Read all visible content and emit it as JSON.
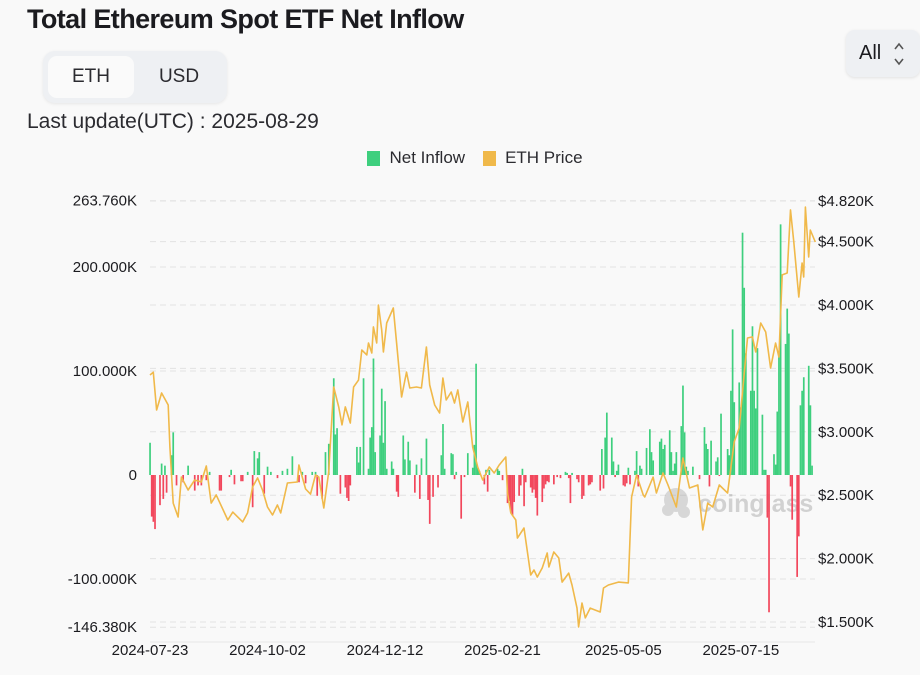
{
  "header": {
    "title": "Total Ethereum Spot ETF Net Inflow",
    "unit_toggle": {
      "options": [
        "ETH",
        "USD"
      ],
      "selected": "ETH"
    },
    "range_select": {
      "value": "All"
    },
    "last_update": "Last update(UTC) : 2025-08-29"
  },
  "colors": {
    "inflow_positive": "#3ecf7e",
    "inflow_negative": "#f2475c",
    "price": "#f0b94a",
    "grid": "#e2e2e2"
  },
  "watermark": "coinglass",
  "chart_data": {
    "type": "bar",
    "legend": [
      "Net Inflow",
      "ETH Price"
    ],
    "legend_position": "top",
    "grid": true,
    "x_ticks": [
      "2024-07-23",
      "2024-10-02",
      "2024-12-12",
      "2025-02-21",
      "2025-05-05",
      "2025-07-15"
    ],
    "y_left": {
      "ticks": [
        263.76,
        200,
        100,
        0,
        -100,
        -146.38
      ],
      "tick_labels": [
        "263.760K",
        "200.000K",
        "100.000K",
        "0",
        "-100.000K",
        "-146.380K"
      ],
      "range": [
        -146.38,
        263.76
      ],
      "unit": "K ETH"
    },
    "y_right": {
      "ticks": [
        4820,
        4500,
        4000,
        3500,
        3000,
        2500,
        2000,
        1500
      ],
      "tick_labels": [
        "$4.820K",
        "$4.500K",
        "$4.000K",
        "$3.500K",
        "$3.000K",
        "$2.500K",
        "$2.000K",
        "$1.500K"
      ],
      "range": [
        1500,
        4820
      ]
    },
    "series": [
      {
        "name": "Net Inflow",
        "type": "bar",
        "axis": "left",
        "x": [
          "2024-07-23",
          "2024-07-24",
          "2024-07-25",
          "2024-07-26",
          "2024-07-29",
          "2024-07-30",
          "2024-07-31",
          "2024-08-01",
          "2024-08-02",
          "2024-08-05",
          "2024-08-06",
          "2024-08-08",
          "2024-08-12",
          "2024-08-15",
          "2024-08-19",
          "2024-08-21",
          "2024-08-23",
          "2024-08-26",
          "2024-08-28",
          "2024-09-03",
          "2024-09-04",
          "2024-09-09",
          "2024-09-10",
          "2024-09-12",
          "2024-09-16",
          "2024-09-17",
          "2024-09-20",
          "2024-09-23",
          "2024-09-24",
          "2024-09-26",
          "2024-09-27",
          "2024-09-30",
          "2024-10-02",
          "2024-10-04",
          "2024-10-08",
          "2024-10-11",
          "2024-10-14",
          "2024-10-17",
          "2024-10-21",
          "2024-10-23",
          "2024-10-25",
          "2024-10-29",
          "2024-10-31",
          "2024-11-01",
          "2024-11-04",
          "2024-11-06",
          "2024-11-08",
          "2024-11-11",
          "2024-11-12",
          "2024-11-13",
          "2024-11-15",
          "2024-11-18",
          "2024-11-19",
          "2024-11-20",
          "2024-11-21",
          "2024-11-25",
          "2024-11-26",
          "2024-11-27",
          "2024-11-29",
          "2024-12-02",
          "2024-12-03",
          "2024-12-04",
          "2024-12-05",
          "2024-12-06",
          "2024-12-09",
          "2024-12-10",
          "2024-12-11",
          "2024-12-12",
          "2024-12-13",
          "2024-12-16",
          "2024-12-17",
          "2024-12-19",
          "2024-12-20",
          "2024-12-23",
          "2024-12-24",
          "2024-12-26",
          "2024-12-27",
          "2024-12-30",
          "2024-12-31",
          "2025-01-02",
          "2025-01-03",
          "2025-01-06",
          "2025-01-07",
          "2025-01-08",
          "2025-01-10",
          "2025-01-13",
          "2025-01-15",
          "2025-01-16",
          "2025-01-17",
          "2025-01-21",
          "2025-01-22",
          "2025-01-23",
          "2025-01-24",
          "2025-01-27",
          "2025-01-29",
          "2025-01-31",
          "2025-02-03",
          "2025-02-04",
          "2025-02-05",
          "2025-02-06",
          "2025-02-07",
          "2025-02-10",
          "2025-02-11",
          "2025-02-12",
          "2025-02-13",
          "2025-02-18",
          "2025-02-19",
          "2025-02-21",
          "2025-02-24",
          "2025-02-25",
          "2025-02-26",
          "2025-02-27",
          "2025-02-28",
          "2025-03-03",
          "2025-03-04",
          "2025-03-05",
          "2025-03-06",
          "2025-03-07",
          "2025-03-10",
          "2025-03-11",
          "2025-03-12",
          "2025-03-13",
          "2025-03-14",
          "2025-03-17",
          "2025-03-18",
          "2025-03-19",
          "2025-03-20",
          "2025-03-21",
          "2025-03-24",
          "2025-03-26",
          "2025-03-28",
          "2025-03-31",
          "2025-04-01",
          "2025-04-02",
          "2025-04-03",
          "2025-04-04",
          "2025-04-07",
          "2025-04-08",
          "2025-04-10",
          "2025-04-11",
          "2025-04-14",
          "2025-04-15",
          "2025-04-16",
          "2025-04-21",
          "2025-04-22",
          "2025-04-23",
          "2025-04-24",
          "2025-04-25",
          "2025-04-28",
          "2025-04-29",
          "2025-04-30",
          "2025-05-01",
          "2025-05-02",
          "2025-05-05",
          "2025-05-06",
          "2025-05-07",
          "2025-05-08",
          "2025-05-09",
          "2025-05-12",
          "2025-05-13",
          "2025-05-14",
          "2025-05-15",
          "2025-05-16",
          "2025-05-19",
          "2025-05-21",
          "2025-05-22",
          "2025-05-23",
          "2025-05-27",
          "2025-05-28",
          "2025-05-29",
          "2025-05-30",
          "2025-06-02",
          "2025-06-03",
          "2025-06-04",
          "2025-06-05",
          "2025-06-06",
          "2025-06-09",
          "2025-06-10",
          "2025-06-11",
          "2025-06-12",
          "2025-06-13",
          "2025-06-16",
          "2025-06-20",
          "2025-06-23",
          "2025-06-24",
          "2025-06-25",
          "2025-06-26",
          "2025-06-27",
          "2025-06-30",
          "2025-07-01",
          "2025-07-02",
          "2025-07-03",
          "2025-07-07",
          "2025-07-08",
          "2025-07-09",
          "2025-07-10",
          "2025-07-11",
          "2025-07-14",
          "2025-07-15",
          "2025-07-16",
          "2025-07-17",
          "2025-07-18",
          "2025-07-21",
          "2025-07-22",
          "2025-07-23",
          "2025-07-24",
          "2025-07-25",
          "2025-07-28",
          "2025-07-29",
          "2025-07-30",
          "2025-07-31",
          "2025-08-01",
          "2025-08-04",
          "2025-08-05",
          "2025-08-06",
          "2025-08-07",
          "2025-08-08",
          "2025-08-11",
          "2025-08-12",
          "2025-08-13",
          "2025-08-14",
          "2025-08-15",
          "2025-08-18",
          "2025-08-19",
          "2025-08-20",
          "2025-08-21",
          "2025-08-22",
          "2025-08-25",
          "2025-08-26",
          "2025-08-27"
        ],
        "values": [
          31,
          -40,
          -45,
          -52,
          -29,
          11,
          -23,
          9,
          -17,
          19,
          41,
          -10,
          -7,
          9,
          -15,
          -10,
          -10,
          -5,
          3,
          -15,
          -15,
          -2,
          5,
          -9,
          -6,
          -6,
          3,
          -31,
          23,
          16,
          22,
          -18,
          8,
          3,
          -3,
          4,
          6,
          18,
          -7,
          3,
          -8,
          3,
          3,
          -20,
          -23,
          22,
          30,
          93,
          39,
          45,
          -18,
          -12,
          -22,
          -25,
          -10,
          27,
          12,
          27,
          93,
          6,
          36,
          46,
          112,
          22,
          38,
          83,
          31,
          71,
          6,
          13,
          6,
          -16,
          -21,
          38,
          15,
          32,
          14,
          -17,
          10,
          -23,
          16,
          35,
          -24,
          -47,
          -21,
          -12,
          19,
          49,
          6,
          21,
          20,
          -4,
          3,
          -42,
          -2,
          21,
          7,
          29,
          107,
          7,
          4,
          -9,
          5,
          -16,
          5,
          6,
          4,
          -5,
          -27,
          -25,
          -36,
          -39,
          -26,
          -20,
          -10,
          6,
          -30,
          -7,
          -12,
          -17,
          -14,
          -22,
          -39,
          -26,
          -13,
          -9,
          -6,
          -7,
          -9,
          -2,
          -3,
          3,
          2,
          -3,
          -27,
          2,
          -4,
          -7,
          -23,
          -20,
          -10,
          -9,
          -7,
          -15,
          25,
          -13,
          36,
          60,
          36,
          13,
          -2,
          4,
          10,
          -10,
          -11,
          -8,
          7,
          -9,
          4,
          23,
          -11,
          9,
          6,
          26,
          44,
          22,
          14,
          32,
          35,
          25,
          29,
          43,
          22,
          4,
          11,
          22,
          47,
          86,
          41,
          8,
          4,
          8,
          -4,
          46,
          30,
          25,
          -11,
          33,
          13,
          17,
          -1,
          59,
          25,
          19,
          81,
          140,
          70,
          89,
          65,
          233,
          180,
          117,
          81,
          143,
          81,
          64,
          122,
          58,
          5,
          5,
          -41,
          -132,
          20,
          10,
          61,
          119,
          241,
          126,
          160,
          136,
          -11,
          -43,
          -98,
          -59,
          67,
          81,
          94,
          105,
          67,
          9
        ]
      },
      {
        "name": "ETH Price",
        "type": "line",
        "axis": "right",
        "x": [
          "2024-07-23",
          "2024-07-25",
          "2024-07-27",
          "2024-07-30",
          "2024-08-03",
          "2024-08-04",
          "2024-08-06",
          "2024-08-09",
          "2024-08-11",
          "2024-08-15",
          "2024-08-19",
          "2024-08-23",
          "2024-08-26",
          "2024-08-29",
          "2024-09-01",
          "2024-09-08",
          "2024-09-11",
          "2024-09-17",
          "2024-09-20",
          "2024-09-23",
          "2024-09-26",
          "2024-09-29",
          "2024-10-02",
          "2024-10-05",
          "2024-10-08",
          "2024-10-10",
          "2024-10-14",
          "2024-10-20",
          "2024-10-21",
          "2024-10-25",
          "2024-10-28",
          "2024-10-31",
          "2024-11-02",
          "2024-11-05",
          "2024-11-08",
          "2024-11-11",
          "2024-11-14",
          "2024-11-16",
          "2024-11-18",
          "2024-11-21",
          "2024-11-23",
          "2024-11-26",
          "2024-11-28",
          "2024-12-01",
          "2024-12-02",
          "2024-12-04",
          "2024-12-05",
          "2024-12-07",
          "2024-12-08",
          "2024-12-10",
          "2024-12-11",
          "2024-12-13",
          "2024-12-17",
          "2024-12-19",
          "2024-12-22",
          "2024-12-25",
          "2024-12-27",
          "2024-12-31",
          "2025-01-03",
          "2025-01-06",
          "2025-01-08",
          "2025-01-11",
          "2025-01-14",
          "2025-01-16",
          "2025-01-18",
          "2025-01-21",
          "2025-01-23",
          "2025-01-25",
          "2025-01-28",
          "2025-01-31",
          "2025-02-03",
          "2025-02-06",
          "2025-02-09",
          "2025-02-13",
          "2025-02-16",
          "2025-02-19",
          "2025-02-23",
          "2025-02-24",
          "2025-02-26",
          "2025-03-01",
          "2025-03-02",
          "2025-03-06",
          "2025-03-10",
          "2025-03-12",
          "2025-03-14",
          "2025-03-17",
          "2025-03-20",
          "2025-03-21",
          "2025-03-24",
          "2025-03-27",
          "2025-03-29",
          "2025-04-02",
          "2025-04-04",
          "2025-04-07",
          "2025-04-08",
          "2025-04-10",
          "2025-04-12",
          "2025-04-15",
          "2025-04-21",
          "2025-04-23",
          "2025-04-26",
          "2025-05-02",
          "2025-05-08",
          "2025-05-10",
          "2025-05-13",
          "2025-05-17",
          "2025-05-18",
          "2025-05-23",
          "2025-05-25",
          "2025-05-29",
          "2025-06-01",
          "2025-06-06",
          "2025-06-10",
          "2025-06-14",
          "2025-06-19",
          "2025-06-22",
          "2025-06-25",
          "2025-06-28",
          "2025-07-02",
          "2025-07-07",
          "2025-07-11",
          "2025-07-14",
          "2025-07-19",
          "2025-07-22",
          "2025-07-24",
          "2025-07-27",
          "2025-07-30",
          "2025-08-02",
          "2025-08-05",
          "2025-08-07",
          "2025-08-09",
          "2025-08-12",
          "2025-08-14",
          "2025-08-16",
          "2025-08-19",
          "2025-08-21",
          "2025-08-22",
          "2025-08-23",
          "2025-08-25",
          "2025-08-26",
          "2025-08-29"
        ],
        "values": [
          3448,
          3470,
          3172,
          3306,
          3211,
          2880,
          2438,
          2328,
          2643,
          2541,
          2620,
          2604,
          2730,
          2438,
          2502,
          2304,
          2367,
          2289,
          2360,
          2565,
          2636,
          2541,
          2407,
          2344,
          2423,
          2360,
          2596,
          2604,
          2738,
          2549,
          2509,
          2659,
          2643,
          2399,
          2683,
          3353,
          3196,
          3054,
          3196,
          3069,
          3353,
          3408,
          3645,
          3606,
          3700,
          3621,
          3827,
          3700,
          4000,
          3803,
          3629,
          3858,
          3976,
          3700,
          3274,
          3471,
          3345,
          3353,
          3345,
          3669,
          3369,
          3211,
          3148,
          3424,
          3251,
          3314,
          3227,
          3330,
          3077,
          3235,
          2880,
          2722,
          2620,
          2722,
          2675,
          2738,
          2801,
          2517,
          2360,
          2304,
          2162,
          2241,
          1871,
          1910,
          1855,
          1926,
          2044,
          1934,
          2052,
          2005,
          1815,
          1886,
          1792,
          1610,
          1461,
          1650,
          1532,
          1610,
          1579,
          1768,
          1792,
          1815,
          1808,
          2486,
          2659,
          2502,
          2486,
          2643,
          2517,
          2675,
          2580,
          2407,
          2793,
          2557,
          2580,
          2226,
          2438,
          2407,
          2580,
          2517,
          2920,
          3030,
          3740,
          3748,
          3629,
          3858,
          3787,
          3503,
          3700,
          3590,
          4237,
          4252,
          4750,
          4497,
          4063,
          4331,
          4221,
          4773,
          4378,
          4591,
          4497
        ]
      }
    ]
  }
}
